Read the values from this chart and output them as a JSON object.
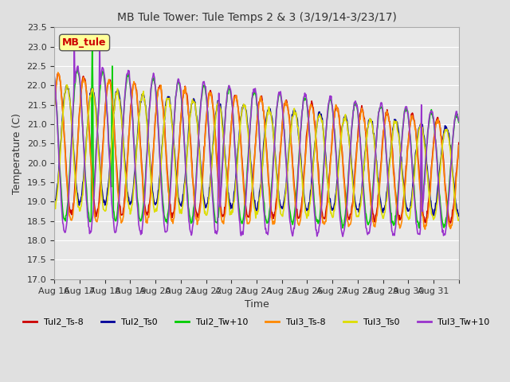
{
  "title": "MB Tule Tower: Tule Temps 2 & 3 (3/19/14-3/23/17)",
  "xlabel": "Time",
  "ylabel": "Temperature (C)",
  "ylim": [
    17.0,
    23.5
  ],
  "yticks": [
    17.0,
    17.5,
    18.0,
    18.5,
    19.0,
    19.5,
    20.0,
    20.5,
    21.0,
    21.5,
    22.0,
    22.5,
    23.0,
    23.5
  ],
  "x_labels": [
    "Aug 16",
    "Aug 17",
    "Aug 18",
    "Aug 19",
    "Aug 20",
    "Aug 21",
    "Aug 22",
    "Aug 23",
    "Aug 24",
    "Aug 25",
    "Aug 26",
    "Aug 27",
    "Aug 28",
    "Aug 29",
    "Aug 30",
    "Aug 31",
    ""
  ],
  "bg_color": "#e0e0e0",
  "plot_bg": "#e8e8e8",
  "grid_color": "#ffffff",
  "legend_label": "MB_tule",
  "legend_label_color": "#cc0000",
  "legend_label_bg": "#ffff99",
  "lines": [
    {
      "label": "Tul2_Ts-8",
      "color": "#cc0000",
      "lw": 1.2
    },
    {
      "label": "Tul2_Ts0",
      "color": "#000099",
      "lw": 1.2
    },
    {
      "label": "Tul2_Tw+10",
      "color": "#00cc00",
      "lw": 1.2
    },
    {
      "label": "Tul3_Ts-8",
      "color": "#ff8800",
      "lw": 1.2
    },
    {
      "label": "Tul3_Ts0",
      "color": "#dddd00",
      "lw": 1.2
    },
    {
      "label": "Tul3_Tw+10",
      "color": "#9933cc",
      "lw": 1.2
    }
  ]
}
